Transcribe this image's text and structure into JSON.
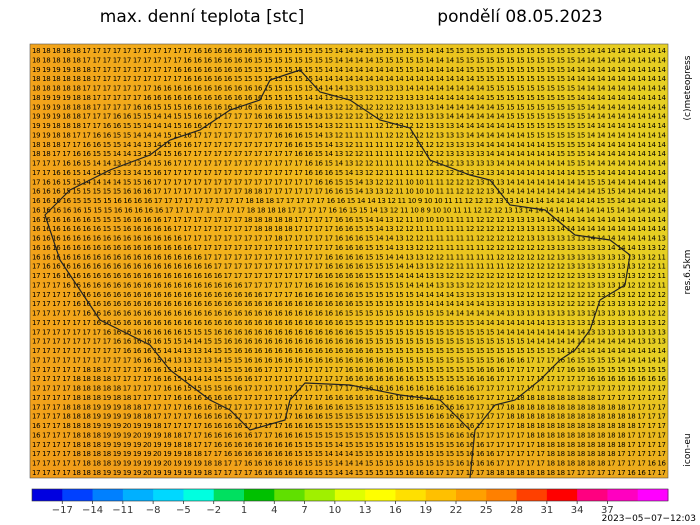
{
  "header": {
    "title": "max. denní teplota [stc]",
    "date": "pondělí 08.05.2023"
  },
  "side": {
    "copyright": "(c)meteopress",
    "resolution": "res.6.5km",
    "model": "icon-eu"
  },
  "footer": {
    "timestamp": "2023−05−07−12:03"
  },
  "map": {
    "rows": [
      "18 18 18 18 18 17 17 17 17 17 17 17 17 17 17 17 16 16 16 16 16 16 16 15 15 15 15 15 15 15 14 14 14 15 15 15 15 15 15 14 14 15 15 15 15 15 15 15 15 15 15 15 15 15 15 14 14 14 14 14 14 14 14",
      "18 18 18 18 18 17 17 17 17 17 17 17 17 17 17 16 16 16 16 16 16 16 15 15 15 15 15 15 15 15 14 14 14 14 15 15 15 15 15 14 14 14 15 15 15 15 15 15 15 15 15 15 15 15 14 14 14 14 14 14 14 14 14",
      "19 19 19 19 18 18 17 17 17 17 17 17 17 17 16 16 16 16 16 16 16 15 15 15 15 15 15 15 15 14 14 14 14 14 14 14 15 15 14 14 14 14 14 15 15 15 15 15 15 15 15 15 15 14 14 14 14 14 14 14 14 14 14",
      "18 18 18 18 18 18 17 17 17 17 17 17 17 17 17 16 16 16 16 16 15 15 15 15 15 15 15 15 14 14 14 14 14 14 14 14 14 14 14 14 14 14 14 14 15 15 15 15 15 15 15 15 15 14 14 14 14 14 14 14 14 14 14",
      "18 18 18 18 18 17 17 17 17 17 17 17 16 16 16 16 16 16 16 16 16 16 16 15 15 15 15 15 14 14 14 13 13 13 13 13 13 14 14 14 14 14 14 14 14 15 15 15 15 15 15 15 15 15 14 14 14 14 14 14 14 14 14",
      "18 19 19 19 18 18 17 17 17 17 17 16 16 16 16 16 16 16 16 16 16 16 16 15 15 15 15 14 14 13 13 13 13 12 12 12 13 13 13 14 14 14 14 14 14 15 15 15 15 15 15 15 15 15 14 14 14 14 14 14 14 14 14",
      "19 19 19 18 18 18 17 17 17 17 16 16 15 15 15 16 16 16 16 16 16 16 16 16 15 15 15 14 14 13 12 12 12 12 12 12 12 13 13 13 14 14 14 14 14 14 15 15 15 15 15 15 15 15 15 14 14 14 14 14 14 14 14",
      "19 19 19 18 18 17 17 17 16 16 15 15 14 14 15 15 16 16 17 17 17 17 16 16 16 15 15 14 13 13 12 12 12 12 12 12 12 12 13 13 13 14 14 14 14 14 14 15 15 15 15 15 15 15 15 14 14 14 14 14 14 14 14",
      "19 19 18 18 18 17 17 16 16 15 15 14 14 14 15 16 16 17 17 17 17 17 17 16 16 16 15 15 14 13 12 11 11 11 12 12 12 12 12 13 13 13 14 14 14 14 14 14 15 15 15 15 15 15 15 14 14 14 14 14 14 14 14",
      "19 19 18 18 17 17 16 16 15 15 14 14 14 15 15 16 17 17 17 17 17 17 17 17 16 16 16 15 14 13 12 11 11 11 11 12 12 12 12 12 13 13 13 14 14 14 14 14 14 15 15 15 15 15 15 14 14 14 14 14 14 14 14",
      "18 18 18 17 17 16 16 15 15 14 14 13 14 15 16 16 17 17 17 17 17 17 17 17 17 16 16 15 15 14 13 12 11 11 11 11 12 12 12 12 12 13 13 13 14 14 14 14 14 14 14 15 15 15 15 14 14 14 14 14 14 14 14",
      "18 18 17 17 16 16 15 15 14 14 13 13 14 15 16 17 17 17 17 17 17 17 17 17 17 17 16 16 15 14 13 12 12 11 11 11 11 12 12 12 12 13 13 13 13 14 14 14 14 14 14 14 15 15 15 14 14 14 14 14 14 14 14",
      "17 17 17 16 16 15 14 14 13 13 13 14 15 16 17 17 17 17 17 17 17 17 17 17 17 17 17 16 16 15 14 13 12 12 11 11 11 11 12 12 12 12 13 13 13 13 14 14 14 14 14 14 14 15 15 14 14 14 14 14 14 14 14",
      "17 17 16 16 15 14 14 13 13 13 14 15 16 17 17 17 17 17 17 17 17 17 17 17 17 17 17 16 16 16 15 14 13 12 12 11 11 11 11 12 12 12 12 13 13 13 14 14 14 14 14 14 14 14 15 15 14 14 14 14 14 14 14",
      "17 16 16 15 15 14 14 14 14 15 15 16 17 17 17 17 17 17 17 17 17 17 17 17 17 17 17 17 16 16 15 15 14 13 12 12 11 10 10 11 11 12 12 12 13 13 13 14 14 14 14 14 14 14 14 15 15 14 14 14 14 14 14",
      "16 16 16 15 15 15 15 15 15 16 16 16 17 17 17 17 17 17 17 17 17 18 18 17 17 17 17 17 17 16 16 15 14 13 13 12 11 10 10 10 11 11 12 12 12 13 13 14 14 14 14 14 14 14 14 14 15 15 14 14 14 14 14",
      "16 16 16 16 15 15 15 15 16 16 16 16 17 17 17 17 17 17 17 17 17 18 18 18 17 17 17 17 17 16 16 15 14 14 13 12 11 10 9 10 10 11 11 12 12 12 13 13 14 14 14 14 14 14 14 14 15 15 14 14 14 14 14",
      "16 16 16 16 16 15 15 15 16 16 16 16 16 17 17 17 17 17 17 17 17 18 18 18 18 17 17 17 17 16 16 15 15 14 13 12 11 10 8 9 10 10 11 11 12 12 12 13 13 14 14 14 14 14 14 14 14 15 14 14 14 14 14",
      "16 16 16 16 16 16 15 15 15 16 16 16 16 17 17 17 17 17 17 17 17 18 18 18 18 18 17 17 17 17 16 16 15 14 14 13 12 11 10 10 10 11 11 11 12 12 12 13 13 13 14 14 14 14 14 14 14 14 14 14 14 14 14",
      "16 16 16 16 16 16 16 15 15 16 16 16 16 16 17 17 17 17 17 17 17 17 18 18 18 18 17 17 17 17 16 16 15 15 14 13 12 12 11 11 11 11 11 12 12 12 12 12 13 13 13 13 14 14 14 14 14 14 14 14 14 14 14",
      "16 16 16 16 16 16 16 16 16 16 16 16 16 16 16 17 17 17 17 17 17 17 17 17 18 17 17 17 17 17 16 16 16 15 14 14 13 12 12 11 11 11 11 11 12 12 12 12 12 13 13 13 13 13 13 14 14 14 14 14 14 14 13",
      "16 16 16 16 16 16 16 16 16 16 16 16 16 16 16 16 17 17 17 17 17 17 17 17 17 17 17 17 17 17 16 16 16 15 15 14 13 13 12 12 11 11 11 11 11 12 12 12 12 12 12 13 13 13 13 13 13 14 14 14 13 13 12",
      "16 16 16 16 16 16 16 16 16 16 16 16 16 16 16 16 16 17 17 17 17 17 17 17 17 17 17 17 17 16 16 16 16 15 15 14 14 13 13 12 12 11 11 11 11 11 12 12 12 12 12 12 13 13 13 13 13 13 13 13 13 12 11",
      "17 16 16 16 16 16 16 16 16 16 16 16 16 16 16 16 16 16 17 17 17 17 17 17 17 17 17 17 17 16 16 16 16 15 15 15 14 14 13 13 12 12 11 11 11 11 11 12 12 12 12 12 12 13 13 13 13 13 13 13 12 12 11",
      "17 17 16 16 16 16 16 16 16 16 16 16 16 16 16 16 16 16 16 17 17 17 17 17 17 17 17 17 16 16 16 16 16 15 15 15 14 14 14 13 13 12 12 12 12 12 12 12 12 12 12 12 12 12 13 13 13 13 13 13 12 12 11",
      "17 17 17 16 16 16 16 16 16 16 16 16 16 16 16 16 16 16 16 16 16 17 17 17 17 17 17 16 16 16 16 16 16 15 15 15 15 14 14 14 13 13 13 12 12 12 12 12 12 12 12 12 12 12 12 13 13 13 13 12 12 12 11",
      "17 17 17 17 16 16 16 16 16 16 16 16 16 16 16 16 16 16 16 16 16 16 16 17 17 17 16 16 16 16 16 16 15 15 15 15 15 15 14 14 14 14 13 13 13 13 13 13 12 12 12 12 12 12 12 12 13 13 13 12 12 12 12",
      "17 17 17 17 16 16 16 16 16 16 16 16 16 16 16 16 16 16 16 16 16 16 16 16 16 16 16 16 16 16 16 16 15 15 15 15 15 15 15 14 14 14 14 14 14 13 13 13 13 13 13 13 12 12 12 12 12 13 13 13 12 12 12",
      "17 17 17 17 17 16 16 16 16 16 16 16 16 16 16 16 16 16 16 16 16 16 16 16 16 16 16 16 16 16 16 15 15 15 15 15 15 15 15 15 15 14 14 14 14 14 14 13 13 13 13 13 13 13 13 13 13 13 13 13 13 12 12",
      "17 17 17 17 17 17 16 16 16 16 16 16 16 16 16 16 16 16 16 16 16 16 16 16 16 16 16 16 16 16 16 15 15 15 15 15 15 15 15 15 15 15 15 15 14 14 14 14 14 14 14 13 13 13 13 13 13 13 13 13 13 13 12",
      "17 17 17 17 17 17 17 16 16 16 16 16 16 16 16 15 15 15 16 16 16 16 16 16 16 16 16 16 16 16 16 16 15 15 15 15 15 15 15 15 15 15 15 15 15 15 14 14 14 14 14 14 14 14 14 13 13 13 13 13 13 13 13",
      "17 17 17 17 17 17 17 17 16 16 16 16 16 15 15 14 14 15 15 16 16 16 16 16 16 16 16 16 16 16 16 16 16 15 15 15 15 15 15 15 15 15 15 15 15 15 15 15 15 14 14 14 14 14 14 14 14 14 14 14 13 13 13",
      "17 17 17 17 17 17 17 17 17 16 16 16 15 14 14 13 13 14 15 15 16 16 16 16 16 16 16 16 16 16 16 16 16 16 15 15 15 15 15 15 15 15 15 15 15 15 15 15 15 15 15 15 14 14 14 14 14 14 14 14 14 14 14",
      "17 17 17 17 17 17 17 17 17 17 16 16 15 14 13 13 12 13 14 15 15 16 16 16 16 16 16 16 16 16 16 16 16 16 16 16 15 15 15 15 15 15 15 15 15 15 16 16 16 17 17 17 16 16 15 15 15 15 14 14 14 14 14",
      "17 17 17 17 17 18 18 17 17 17 17 16 16 15 14 13 13 13 14 15 15 16 16 17 17 17 17 17 17 17 17 16 16 16 16 16 16 15 15 15 15 15 15 15 16 16 16 17 17 17 17 17 17 16 16 16 15 15 15 15 15 15 15",
      "17 17 17 17 18 18 18 18 17 17 17 17 16 16 15 14 14 14 15 15 16 16 17 17 17 17 17 17 17 17 17 16 16 16 16 16 16 16 15 15 15 15 15 16 16 16 17 17 17 17 17 17 17 17 17 16 16 16 16 16 16 16 16",
      "17 17 17 17 18 18 18 18 18 17 17 17 17 16 16 15 15 15 15 16 16 17 17 17 17 17 17 17 17 17 17 17 16 16 16 16 16 16 16 16 16 16 16 16 17 17 17 17 17 17 17 17 17 17 17 17 17 17 17 17 17 17 17",
      "17 17 17 17 18 18 18 19 18 18 17 17 17 17 16 16 16 16 16 16 17 17 17 17 17 17 17 17 17 16 16 16 16 16 16 16 16 16 16 16 16 16 16 16 17 17 17 17 18 18 18 18 18 18 18 18 17 17 17 17 17 17 17",
      "17 17 17 18 18 18 19 19 19 18 18 17 17 17 17 16 16 16 16 17 17 17 17 17 17 17 17 16 16 16 16 15 15 15 15 15 15 15 16 16 16 16 16 17 17 17 17 18 18 18 18 18 18 18 18 18 18 18 18 17 17 17 17",
      "17 17 17 18 18 18 19 19 19 19 18 18 17 17 17 17 16 16 16 16 17 17 17 17 17 17 16 16 16 15 15 15 15 15 15 15 15 15 15 16 16 16 16 17 17 17 17 18 18 18 18 18 18 18 18 18 18 18 18 18 17 17 17",
      "16 17 17 18 18 18 19 19 19 20 19 19 18 17 17 17 17 16 16 16 16 17 17 17 17 16 16 16 15 15 15 15 15 15 15 15 15 15 15 15 16 16 16 16 17 17 17 17 18 18 18 18 18 18 18 18 18 18 18 18 17 17 17",
      "16 17 17 17 18 18 18 19 19 19 20 19 19 18 18 17 17 16 16 16 16 16 17 17 16 16 16 15 15 15 15 15 15 15 15 15 15 15 15 15 15 16 16 16 17 17 17 17 17 18 18 18 18 18 18 18 18 18 18 17 17 17 17",
      "17 17 17 17 18 18 18 19 19 19 19 20 19 19 18 18 17 17 16 16 16 16 16 16 16 16 15 15 15 15 14 15 15 15 15 15 15 15 15 15 15 15 16 16 16 17 17 17 17 17 18 18 18 18 18 18 18 18 18 17 17 17 17",
      "17 17 17 17 18 18 18 18 19 19 19 19 20 19 19 18 18 17 17 16 16 16 16 16 16 16 15 15 15 14 14 14 15 15 15 15 15 15 15 15 15 15 15 16 16 16 17 17 17 17 17 18 18 18 18 18 18 18 17 17 17 17 17",
      "17 17 17 17 17 18 18 18 19 19 19 19 19 20 19 19 19 18 18 17 17 16 16 16 16 16 16 15 15 15 14 14 14 15 15 15 15 15 15 15 15 15 16 16 16 16 17 17 17 17 17 18 18 18 18 18 18 17 17 17 17 16 16",
      "17 17 17 17 18 18 18 19 19 19 19 20 19 19 19 19 19 18 17 17 17 17 16 16 16 16 16 16 15 15 14 14 15 15 15 15 15 16 16 16 17 17 17 17 17 18 18 18 18 18 18 18 18 17 17 17 17 17 17 16 16 17 17"
    ]
  },
  "colorbar": {
    "range": [
      -20,
      43
    ],
    "colors": [
      "#0000e0",
      "#0040ff",
      "#0080ff",
      "#00b0ff",
      "#00d8ff",
      "#00ffe0",
      "#00e060",
      "#00c000",
      "#60e000",
      "#a0f000",
      "#e0ff00",
      "#ffff00",
      "#ffe000",
      "#ffc000",
      "#ffa000",
      "#ff8000",
      "#ff4000",
      "#ff0000",
      "#ff0080",
      "#ff00c0",
      "#ff00ff"
    ],
    "ticks": [
      {
        "value": -17,
        "label": "−17"
      },
      {
        "value": -14,
        "label": "−14"
      },
      {
        "value": -11,
        "label": "−11"
      },
      {
        "value": -8,
        "label": "−8"
      },
      {
        "value": -5,
        "label": "−5"
      },
      {
        "value": -2,
        "label": "−2"
      },
      1,
      4,
      7,
      10,
      13,
      16,
      19,
      22,
      25,
      28,
      31,
      34,
      37
    ]
  }
}
